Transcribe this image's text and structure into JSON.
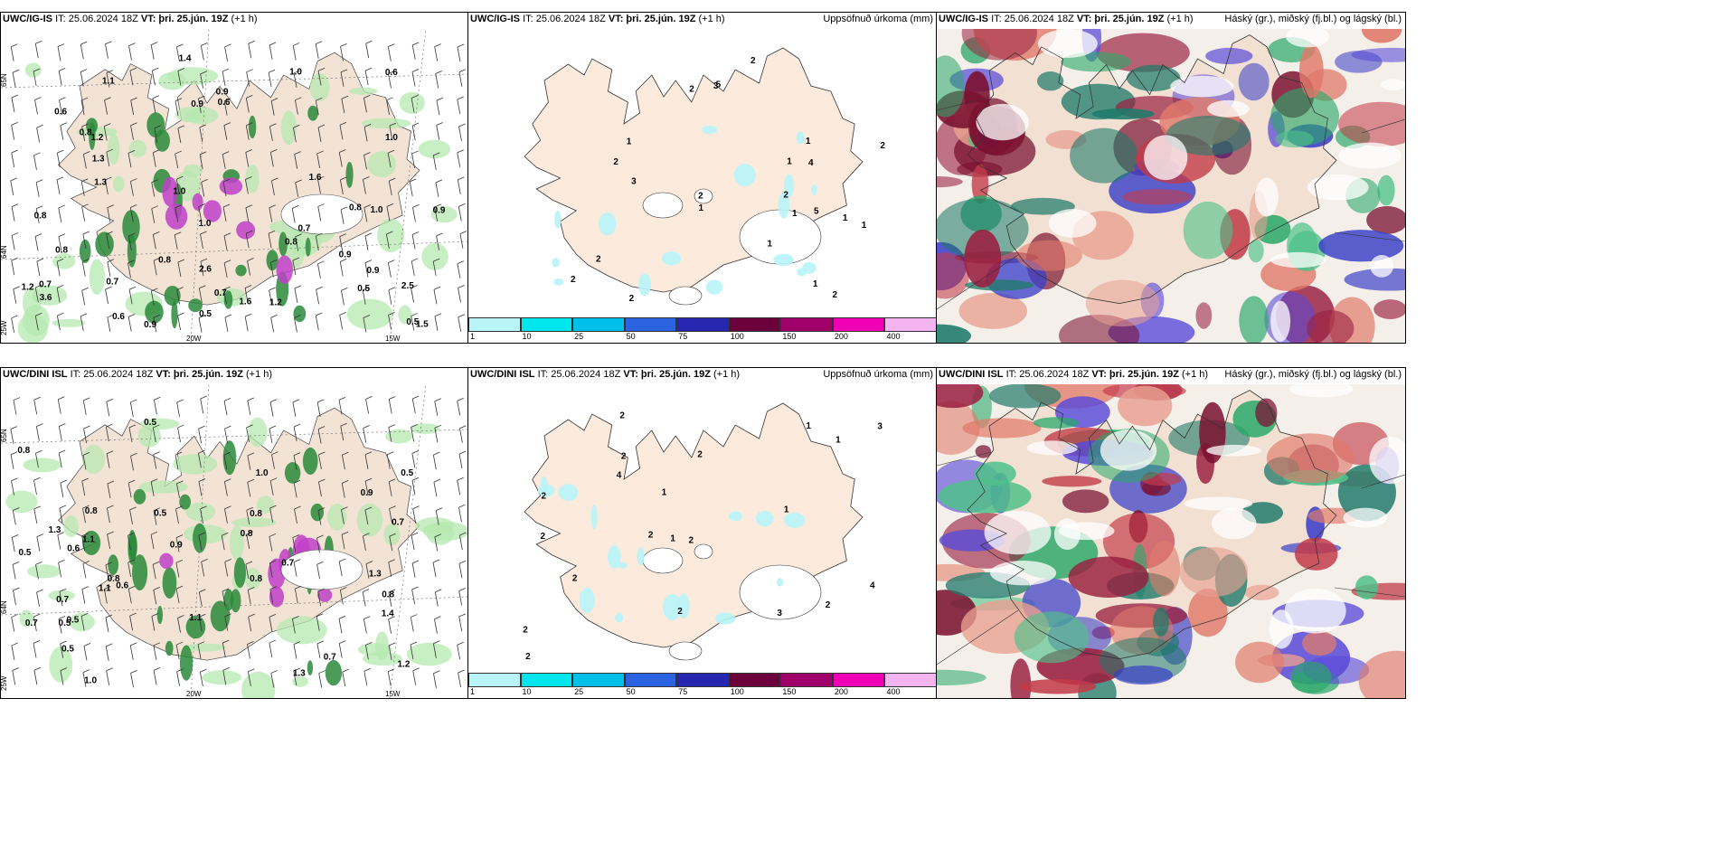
{
  "rows": [
    {
      "model": "UWC/IG-IS",
      "panels": [
        {
          "id": "wind",
          "title_model": "UWC/IG-IS",
          "title_rest": "IT: 25.06.2024 18Z",
          "vt_label": "VT:",
          "vt": "þri. 25.jún. 19Z",
          "offset": "(+1 h)",
          "right": ""
        },
        {
          "id": "precip",
          "title_model": "UWC/IG-IS",
          "title_rest": "IT: 25.06.2024 18Z",
          "vt_label": "VT:",
          "vt": "þri. 25.jún. 19Z",
          "offset": "(+1 h)",
          "right": "Uppsöfnuð úrkoma (mm)"
        },
        {
          "id": "cloud",
          "title_model": "UWC/IG-IS",
          "title_rest": "IT: 25.06.2024 18Z",
          "vt_label": "VT:",
          "vt": "þri. 25.jún. 19Z",
          "offset": "(+1 h)",
          "right": "Háský (gr.), miðský (fj.bl.) og lágský (bl.)"
        }
      ]
    },
    {
      "model": "UWC/DINI ISL",
      "panels": [
        {
          "id": "wind",
          "title_model": "UWC/DINI ISL",
          "title_rest": "IT: 25.06.2024 18Z",
          "vt_label": "VT:",
          "vt": "þri. 25.jún. 19Z",
          "offset": "(+1 h)",
          "right": ""
        },
        {
          "id": "precip",
          "title_model": "UWC/DINI ISL",
          "title_rest": "IT: 25.06.2024 18Z",
          "vt_label": "VT:",
          "vt": "þri. 25.jún. 19Z",
          "offset": "(+1 h)",
          "right": "Uppsöfnuð úrkoma (mm)"
        },
        {
          "id": "cloud",
          "title_model": "UWC/DINI ISL",
          "title_rest": "IT: 25.06.2024 18Z",
          "vt_label": "VT:",
          "vt": "þri. 25.jún. 19Z",
          "offset": "(+1 h)",
          "right": "Háský (gr.), miðský (fj.bl.) og lágský (bl.)"
        }
      ]
    }
  ],
  "axis_labels": {
    "lat66": "66N",
    "lat64": "64N",
    "lat65": "65N",
    "lon25": "25W",
    "lon20": "20W",
    "lon15": "15W"
  },
  "legend": {
    "ticks": [
      "1",
      "10",
      "25",
      "50",
      "75",
      "100",
      "150",
      "200",
      "400"
    ],
    "colors": [
      "#b8f4f8",
      "#00e6ee",
      "#00bfe8",
      "#2a62e0",
      "#2626b0",
      "#6b003d",
      "#a0006a",
      "#f000b4",
      "#f4b4f0"
    ]
  },
  "wind_labels_top": [
    "0.6",
    "0.5",
    "0.6",
    "0.7",
    "1.2",
    "0.8",
    "1.0",
    "0.6",
    "0.7",
    "1.2",
    "0.8",
    "0.7",
    "0.5",
    "1.0",
    "1.1",
    "1.0",
    "0.9",
    "1.2",
    "0.8",
    "0.8",
    "0.9",
    "0.6",
    "1.0",
    "1.6",
    "2.5",
    "1.4",
    "3.6",
    "0.9",
    "0.8",
    "0.9",
    "1.3",
    "1.0",
    "0.8",
    "0.9",
    "0.7",
    "2.6",
    "1.6",
    "0.5",
    "0.9",
    "1.3",
    "1.5"
  ],
  "wind_labels_bottom": [
    "0.7",
    "0.9",
    "0.5",
    "0.5",
    "0.8",
    "1.0",
    "1.1",
    "1.3",
    "1.4",
    "1.1",
    "0.9",
    "0.8",
    "0.7",
    "1.1",
    "1.0",
    "0.8",
    "0.5",
    "0.6",
    "0.5",
    "1.3",
    "1.2",
    "0.5",
    "0.5",
    "0.7",
    "0.8",
    "1.3",
    "0.8",
    "0.7",
    "0.8",
    "0.8",
    "0.7",
    "0.5",
    "0.6"
  ],
  "precip_labels_top": [
    "2",
    "2",
    "1",
    "1",
    "1",
    "2",
    "2",
    "3",
    "5",
    "4",
    "3",
    "2",
    "1",
    "1",
    "2",
    "2",
    "1",
    "1",
    "2",
    "1",
    "5",
    "2",
    "1",
    "2"
  ],
  "precip_labels_bottom": [
    "2",
    "1",
    "2",
    "2",
    "2",
    "3",
    "1",
    "2",
    "2",
    "1",
    "4",
    "3",
    "2",
    "2",
    "1",
    "4",
    "2",
    "1",
    "2",
    "2",
    "2"
  ],
  "colors": {
    "land": "#f2e3d5",
    "land_precip": "#fcebdc",
    "green": "#2a8a3a",
    "magenta": "#c040c8"
  }
}
